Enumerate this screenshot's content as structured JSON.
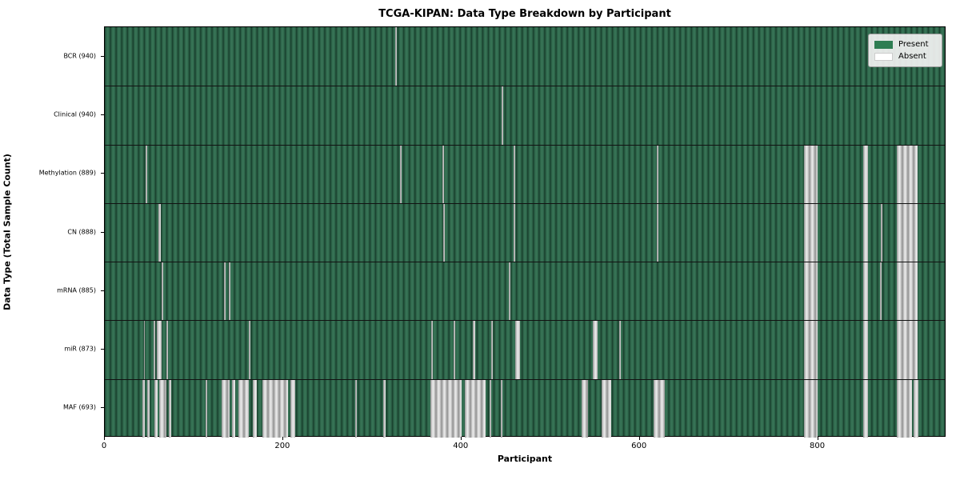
{
  "title": "TCGA-KIPAN: Data Type Breakdown by Participant",
  "xlabel": "Participant",
  "ylabel": "Data Type (Total Sample Count)",
  "legend": {
    "present_label": "Present",
    "absent_label": "Absent",
    "present_color": "#2e7d52",
    "absent_color": "#ffffff"
  },
  "chart_data": {
    "type": "heatmap",
    "title": "TCGA-KIPAN: Data Type Breakdown by Participant",
    "xlabel": "Participant",
    "ylabel": "Data Type (Total Sample Count)",
    "x_ticks": [
      0,
      200,
      400,
      600,
      800
    ],
    "x_max": 944,
    "present_color": "#2e7d52",
    "absent_color": "#ffffff",
    "legend_position": "upper right",
    "grid": false,
    "rows": [
      {
        "key": "bcr",
        "label": "BCR (940)",
        "data_type": "BCR",
        "total_sample_count": 940,
        "absent_segments": [
          [
            326,
            328
          ]
        ]
      },
      {
        "key": "clinical",
        "label": "Clinical (940)",
        "data_type": "Clinical",
        "total_sample_count": 940,
        "absent_segments": [
          [
            446,
            448
          ]
        ]
      },
      {
        "key": "methylation",
        "label": "Methylation (889)",
        "data_type": "Methylation",
        "total_sample_count": 889,
        "absent_segments": [
          [
            46,
            48
          ],
          [
            332,
            334
          ],
          [
            379,
            381
          ],
          [
            459,
            461
          ],
          [
            620,
            622
          ],
          [
            786,
            801
          ],
          [
            852,
            858
          ],
          [
            890,
            913
          ]
        ]
      },
      {
        "key": "cn",
        "label": "CN (888)",
        "data_type": "CN",
        "total_sample_count": 888,
        "absent_segments": [
          [
            60,
            63
          ],
          [
            380,
            382
          ],
          [
            459,
            461
          ],
          [
            620,
            622
          ],
          [
            786,
            801
          ],
          [
            852,
            858
          ],
          [
            872,
            874
          ],
          [
            890,
            913
          ]
        ]
      },
      {
        "key": "mrna",
        "label": "mRNA (885)",
        "data_type": "mRNA",
        "total_sample_count": 885,
        "absent_segments": [
          [
            64,
            66
          ],
          [
            134,
            136
          ],
          [
            139,
            141
          ],
          [
            454,
            456
          ],
          [
            786,
            801
          ],
          [
            852,
            858
          ],
          [
            871,
            873
          ],
          [
            890,
            913
          ]
        ]
      },
      {
        "key": "mir",
        "label": "miR (873)",
        "data_type": "miR",
        "total_sample_count": 873,
        "absent_segments": [
          [
            44,
            45
          ],
          [
            55,
            57
          ],
          [
            58,
            64
          ],
          [
            69,
            71
          ],
          [
            162,
            164
          ],
          [
            367,
            369
          ],
          [
            392,
            394
          ],
          [
            414,
            416
          ],
          [
            434,
            436
          ],
          [
            461,
            467
          ],
          [
            548,
            554
          ],
          [
            578,
            580
          ],
          [
            786,
            801
          ],
          [
            852,
            858
          ],
          [
            890,
            913
          ]
        ]
      },
      {
        "key": "maf",
        "label": "MAF (693)",
        "data_type": "MAF",
        "total_sample_count": 693,
        "absent_segments": [
          [
            42,
            45
          ],
          [
            48,
            50
          ],
          [
            56,
            59
          ],
          [
            61,
            69
          ],
          [
            72,
            75
          ],
          [
            113,
            115
          ],
          [
            131,
            140
          ],
          [
            143,
            147
          ],
          [
            150,
            162
          ],
          [
            166,
            171
          ],
          [
            177,
            206
          ],
          [
            209,
            214
          ],
          [
            281,
            283
          ],
          [
            313,
            316
          ],
          [
            366,
            401
          ],
          [
            405,
            428
          ],
          [
            432,
            434
          ],
          [
            445,
            447
          ],
          [
            536,
            543
          ],
          [
            558,
            569
          ],
          [
            617,
            629
          ],
          [
            786,
            801
          ],
          [
            852,
            858
          ],
          [
            890,
            907
          ],
          [
            909,
            914
          ]
        ]
      }
    ]
  }
}
